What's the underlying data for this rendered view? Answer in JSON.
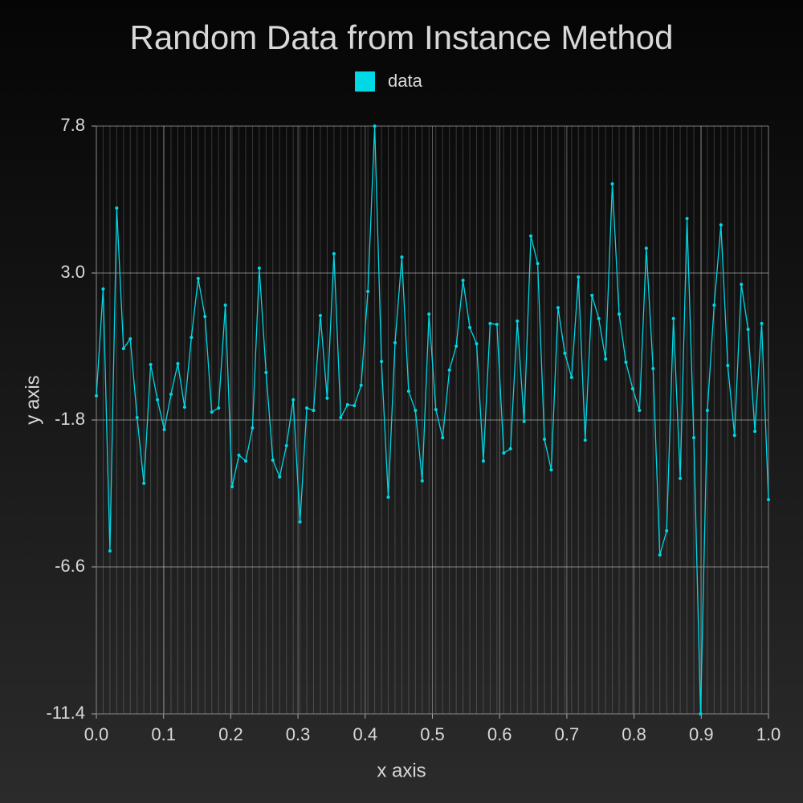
{
  "chart_data": {
    "type": "line",
    "title": "Random Data from Instance Method",
    "xlabel": "x axis",
    "ylabel": "y axis",
    "x": [
      0,
      0.0101,
      0.0202,
      0.0303,
      0.0404,
      0.0505,
      0.0606,
      0.0707,
      0.0808,
      0.0909,
      0.101,
      0.1111,
      0.1212,
      0.1313,
      0.1414,
      0.1515,
      0.1616,
      0.1717,
      0.1818,
      0.1919,
      0.202,
      0.2121,
      0.2222,
      0.2323,
      0.2424,
      0.2525,
      0.2626,
      0.2727,
      0.2828,
      0.2929,
      0.303,
      0.3131,
      0.3232,
      0.3333,
      0.3434,
      0.3535,
      0.3636,
      0.3737,
      0.3838,
      0.3939,
      0.404,
      0.4141,
      0.4242,
      0.4343,
      0.4444,
      0.4545,
      0.4646,
      0.4747,
      0.4848,
      0.4949,
      0.5051,
      0.5152,
      0.5253,
      0.5354,
      0.5455,
      0.5556,
      0.5657,
      0.5758,
      0.5859,
      0.596,
      0.6061,
      0.6162,
      0.6263,
      0.6364,
      0.6465,
      0.6566,
      0.6667,
      0.6768,
      0.6869,
      0.697,
      0.7071,
      0.7172,
      0.7273,
      0.7374,
      0.7475,
      0.7576,
      0.7677,
      0.7778,
      0.7879,
      0.798,
      0.8081,
      0.8182,
      0.8283,
      0.8384,
      0.8485,
      0.8586,
      0.8687,
      0.8788,
      0.8889,
      0.899,
      0.9091,
      0.9192,
      0.9293,
      0.9394,
      0.9495,
      0.9596,
      0.9697,
      0.9798,
      0.9899,
      1.0
    ],
    "series": [
      {
        "name": "data",
        "color": "#00d8e6",
        "values": [
          -1.01,
          2.48,
          -6.08,
          5.12,
          0.53,
          0.85,
          -1.72,
          -3.87,
          0.01,
          -1.14,
          -2.11,
          -0.96,
          0.04,
          -1.38,
          0.9,
          2.82,
          1.58,
          -1.54,
          -1.41,
          1.95,
          -3.98,
          -2.95,
          -3.14,
          -2.06,
          3.16,
          -0.25,
          -3.11,
          -3.66,
          -2.64,
          -1.14,
          -5.13,
          -1.41,
          -1.49,
          1.61,
          -1.09,
          3.63,
          -1.72,
          -1.3,
          -1.33,
          -0.67,
          2.4,
          7.8,
          0.11,
          -4.32,
          0.72,
          3.52,
          -0.86,
          -1.49,
          -3.79,
          1.66,
          -1.46,
          -2.38,
          -0.17,
          0.61,
          2.76,
          1.22,
          0.69,
          -3.14,
          1.35,
          1.32,
          -2.88,
          -2.74,
          1.43,
          -1.85,
          4.21,
          3.31,
          -2.43,
          -3.43,
          1.87,
          0.38,
          -0.41,
          2.87,
          -2.46,
          2.27,
          1.51,
          0.19,
          5.91,
          1.66,
          0.09,
          -0.78,
          -1.49,
          3.81,
          -0.12,
          -6.21,
          -5.42,
          1.51,
          -3.71,
          4.78,
          -2.38,
          -11.4,
          -1.49,
          1.95,
          4.57,
          -0.02,
          -2.3,
          2.63,
          1.16,
          -2.17,
          1.35,
          -4.4
        ]
      }
    ],
    "xlim": [
      0,
      1
    ],
    "xticks": [
      {
        "value": 0,
        "label": "0.0"
      },
      0.1,
      0.2,
      0.3,
      0.4,
      0.5,
      0.6,
      0.7,
      0.8,
      0.9,
      {
        "value": 1,
        "label": "1.0"
      }
    ],
    "ylim": [
      -11.4,
      7.8
    ],
    "yticks": [
      -11.4,
      -6.6,
      -1.8,
      {
        "value": 3,
        "label": "3.0"
      },
      7.8
    ],
    "grid": true,
    "legend": "top"
  }
}
